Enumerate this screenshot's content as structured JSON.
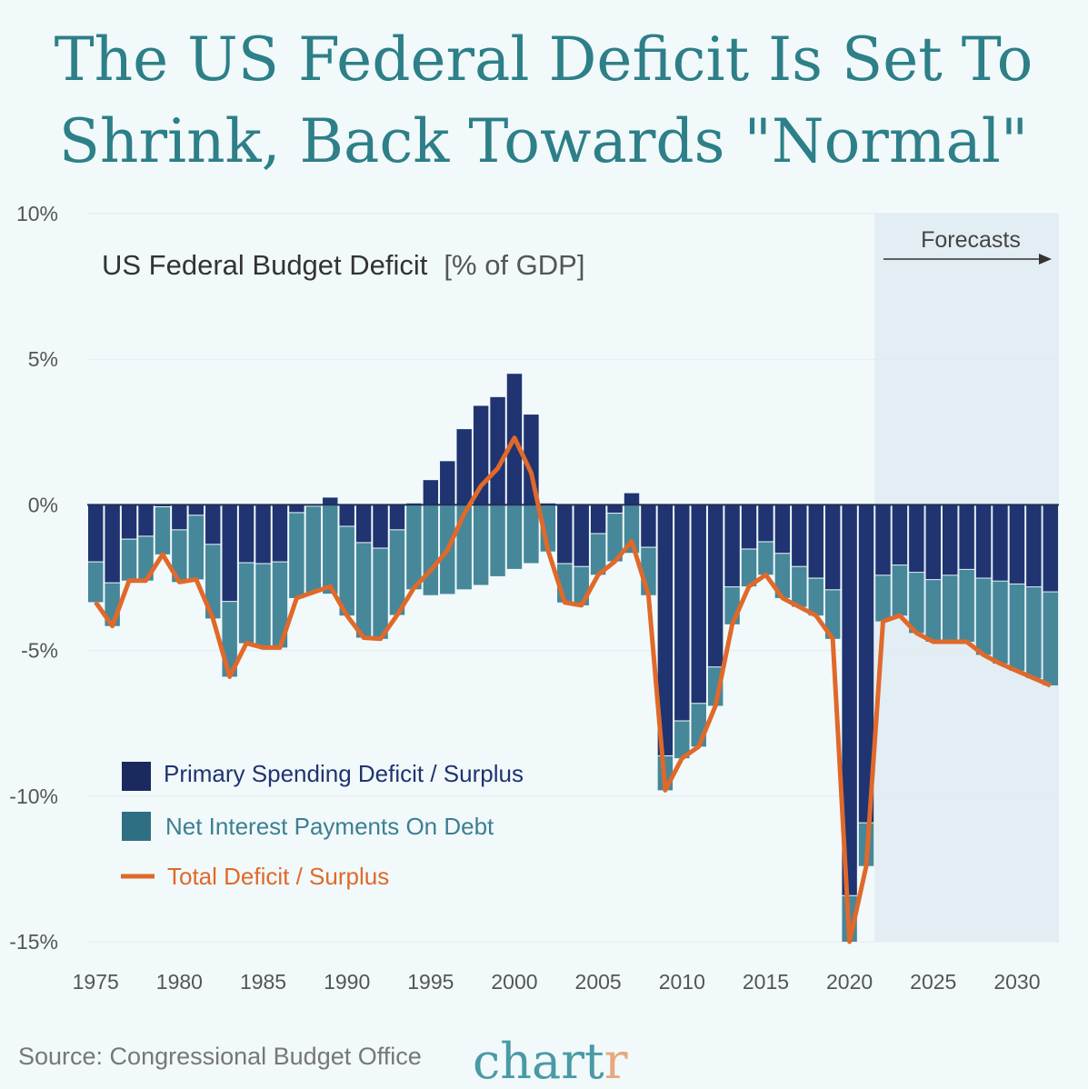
{
  "title_lines": [
    "The US Federal Deficit Is Set To",
    "Shrink, Back Towards \"Normal\""
  ],
  "source": "Source: Congressional Budget Office",
  "logo": {
    "main": "chart",
    "accent": "r"
  },
  "colors": {
    "background": "#f1f9fa",
    "title": "#2d7f88",
    "primary": "#1f3470",
    "interest": "#46879a",
    "total": "#e0692a",
    "forecast_shade": "#e3edf4"
  },
  "chart_data": {
    "type": "bar",
    "title": "US Federal Budget Deficit",
    "unit": "[% of GDP]",
    "forecast_label": "Forecasts",
    "forecast_from": 2022,
    "ylim": [
      -15,
      10
    ],
    "yticks": [
      10,
      5,
      0,
      -5,
      -10,
      -15
    ],
    "ytick_labels": [
      "10%",
      "5%",
      "0%",
      "-5%",
      "-10%",
      "-15%"
    ],
    "xticks": [
      1975,
      1980,
      1985,
      1990,
      1995,
      2000,
      2005,
      2010,
      2015,
      2020,
      2025,
      2030
    ],
    "grid": true,
    "stacked": true,
    "legend_position": "bottom-left",
    "years": [
      1975,
      1976,
      1977,
      1978,
      1979,
      1980,
      1981,
      1982,
      1983,
      1984,
      1985,
      1986,
      1987,
      1988,
      1989,
      1990,
      1991,
      1992,
      1993,
      1994,
      1995,
      1996,
      1997,
      1998,
      1999,
      2000,
      2001,
      2002,
      2003,
      2004,
      2005,
      2006,
      2007,
      2008,
      2009,
      2010,
      2011,
      2012,
      2013,
      2014,
      2015,
      2016,
      2017,
      2018,
      2019,
      2020,
      2021,
      2022,
      2023,
      2024,
      2025,
      2026,
      2027,
      2028,
      2029,
      2030,
      2031,
      2032
    ],
    "series": [
      {
        "name": "Primary Spending Deficit / Surplus",
        "kind": "bar",
        "values": [
          -1.94,
          -2.66,
          -1.16,
          -1.06,
          -0.05,
          -0.84,
          -0.34,
          -1.34,
          -3.3,
          -1.97,
          -2.0,
          -1.94,
          -0.25,
          -0.03,
          0.25,
          -0.72,
          -1.28,
          -1.47,
          -0.84,
          0.05,
          0.85,
          1.5,
          2.6,
          3.4,
          3.7,
          4.5,
          3.1,
          0.05,
          -2.0,
          -2.1,
          -0.97,
          -0.27,
          0.4,
          -1.44,
          -8.6,
          -7.4,
          -6.8,
          -5.55,
          -2.8,
          -1.5,
          -1.25,
          -1.65,
          -2.1,
          -2.5,
          -2.9,
          -13.4,
          -10.9,
          -2.4,
          -2.05,
          -2.3,
          -2.55,
          -2.4,
          -2.2,
          -2.5,
          -2.6,
          -2.7,
          -2.8,
          -2.97
        ]
      },
      {
        "name": "Net Interest Payments On Debt",
        "kind": "bar",
        "values": [
          -1.4,
          -1.5,
          -1.44,
          -1.54,
          -1.65,
          -1.81,
          -2.22,
          -2.56,
          -2.6,
          -2.78,
          -2.9,
          -2.96,
          -2.95,
          -2.97,
          -3.05,
          -3.08,
          -3.28,
          -3.13,
          -2.94,
          -2.9,
          -3.1,
          -3.06,
          -2.9,
          -2.75,
          -2.45,
          -2.2,
          -2.0,
          -1.6,
          -1.35,
          -1.35,
          -1.43,
          -1.67,
          -1.65,
          -1.66,
          -1.2,
          -1.3,
          -1.5,
          -1.35,
          -1.3,
          -1.3,
          -1.15,
          -1.55,
          -1.4,
          -1.3,
          -1.7,
          -1.6,
          -1.5,
          -1.6,
          -1.75,
          -2.1,
          -2.15,
          -2.3,
          -2.5,
          -2.65,
          -2.85,
          -3.0,
          -3.15,
          -3.23
        ]
      },
      {
        "name": "Total Deficit / Surplus",
        "kind": "line",
        "values": [
          -3.34,
          -4.16,
          -2.6,
          -2.6,
          -1.7,
          -2.65,
          -2.56,
          -3.9,
          -5.9,
          -4.75,
          -4.9,
          -4.9,
          -3.2,
          -3.0,
          -2.8,
          -3.8,
          -4.56,
          -4.6,
          -3.78,
          -2.85,
          -2.25,
          -1.56,
          -0.3,
          0.65,
          1.25,
          2.3,
          1.1,
          -1.55,
          -3.35,
          -3.45,
          -2.4,
          -1.94,
          -1.25,
          -3.1,
          -9.8,
          -8.7,
          -8.3,
          -6.9,
          -4.1,
          -2.8,
          -2.4,
          -3.2,
          -3.5,
          -3.8,
          -4.6,
          -15.0,
          -12.4,
          -4.0,
          -3.8,
          -4.4,
          -4.7,
          -4.7,
          -4.7,
          -5.15,
          -5.45,
          -5.7,
          -5.95,
          -6.2
        ]
      }
    ]
  }
}
